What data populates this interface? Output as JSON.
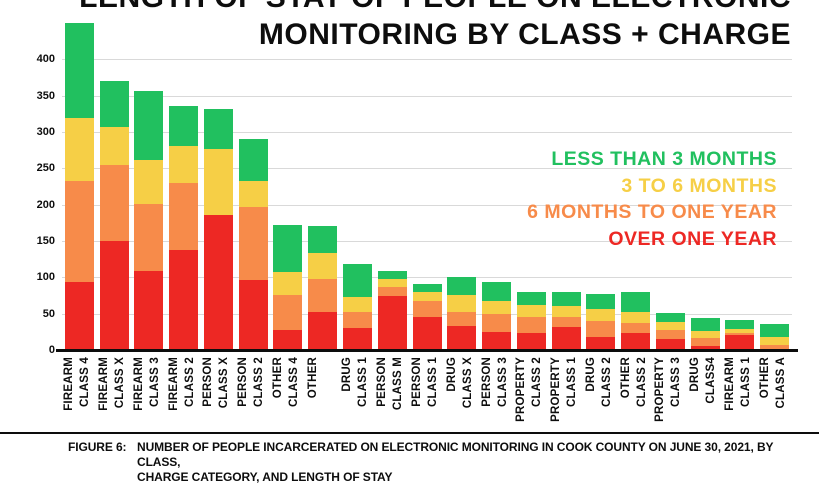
{
  "title": {
    "line1": "LENGTH OF STAY OF PEOPLE ON ELECTRONIC",
    "line2": "MONITORING BY CLASS + CHARGE"
  },
  "legend": {
    "items": [
      {
        "label": "LESS THAN 3 MONTHS",
        "color": "#21c05f"
      },
      {
        "label": "3 TO 6 MONTHS",
        "color": "#f6cf46"
      },
      {
        "label": "6 MONTHS TO ONE YEAR",
        "color": "#f78b4a"
      },
      {
        "label": "OVER ONE YEAR",
        "color": "#ed2824"
      }
    ]
  },
  "caption": {
    "figure_label": "FIGURE 6:",
    "line1": "NUMBER OF PEOPLE INCARCERATED ON ELECTRONIC MONITORING IN COOK COUNTY ON JUNE 30, 2021, BY CLASS,",
    "line2": "CHARGE CATEGORY, AND LENGTH OF STAY"
  },
  "chart_data": {
    "type": "bar",
    "stacked": true,
    "title": "LENGTH OF STAY OF PEOPLE ON ELECTRONIC MONITORING BY CLASS + CHARGE",
    "xlabel": "",
    "ylabel": "",
    "ylim": [
      0,
      450
    ],
    "yticks": [
      0,
      50,
      100,
      150,
      200,
      250,
      300,
      350,
      400
    ],
    "grid": true,
    "legend_position": "right-overlay",
    "categories": [
      "FIREARM CLASS 4",
      "FIREARM CLASS X",
      "FIREARM CLASS 3",
      "FIREARM CLASS 2",
      "PERSON CLASS X",
      "PERSON CLASS 2",
      "OTHER CLASS 4",
      "OTHER",
      "DRUG CLASS 1",
      "PERSON CLASS M",
      "PERSON CLASS 1",
      "DRUG CLASS X",
      "PERSON CLASS 3",
      "PROPERTY CLASS 2",
      "PROPERTY CLASS 1",
      "DRUG CLASS 2",
      "OTHER CLASS 2",
      "PROPERTY CLASS 3",
      "DRUG CLASS4",
      "FIREARM CLASS 1",
      "OTHER CLASS A"
    ],
    "category_lines": [
      [
        "FIREARM",
        "CLASS 4"
      ],
      [
        "FIREARM",
        "CLASS X"
      ],
      [
        "FIREARM",
        "CLASS 3"
      ],
      [
        "FIREARM",
        "CLASS 2"
      ],
      [
        "PERSON",
        "CLASS X"
      ],
      [
        "PERSON",
        "CLASS 2"
      ],
      [
        "OTHER",
        "CLASS 4"
      ],
      [
        "OTHER",
        ""
      ],
      [
        "DRUG",
        "CLASS 1"
      ],
      [
        "PERSON",
        "CLASS M"
      ],
      [
        "PERSON",
        "CLASS 1"
      ],
      [
        "DRUG",
        "CLASS X"
      ],
      [
        "PERSON",
        "CLASS 3"
      ],
      [
        "PROPERTY",
        "CLASS 2"
      ],
      [
        "PROPERTY",
        "CLASS 1"
      ],
      [
        "DRUG",
        "CLASS 2"
      ],
      [
        "OTHER",
        "CLASS 2"
      ],
      [
        "PROPERTY",
        "CLASS 3"
      ],
      [
        "DRUG",
        "CLASS4"
      ],
      [
        "FIREARM",
        "CLASS 1"
      ],
      [
        "OTHER",
        "CLASS A"
      ]
    ],
    "series": [
      {
        "name": "OVER ONE YEAR",
        "color": "#ed2824",
        "values": [
          93,
          150,
          109,
          137,
          186,
          97,
          28,
          53,
          30,
          75,
          46,
          33,
          25,
          23,
          32,
          18,
          23,
          15,
          5,
          21,
          2
        ]
      },
      {
        "name": "6 MONTHS TO ONE YEAR",
        "color": "#f78b4a",
        "values": [
          140,
          105,
          92,
          93,
          0,
          100,
          48,
          45,
          23,
          12,
          22,
          20,
          24,
          23,
          14,
          22,
          14,
          13,
          12,
          3,
          5
        ]
      },
      {
        "name": "3 TO 6 MONTHS",
        "color": "#f6cf46",
        "values": [
          87,
          52,
          61,
          51,
          91,
          36,
          32,
          36,
          20,
          11,
          12,
          23,
          19,
          16,
          14,
          16,
          16,
          10,
          9,
          5,
          11
        ]
      },
      {
        "name": "LESS THAN 3 MONTHS",
        "color": "#21c05f",
        "values": [
          130,
          63,
          94,
          55,
          55,
          57,
          64,
          37,
          46,
          11,
          11,
          24,
          26,
          18,
          20,
          21,
          27,
          13,
          18,
          12,
          18
        ]
      }
    ]
  }
}
